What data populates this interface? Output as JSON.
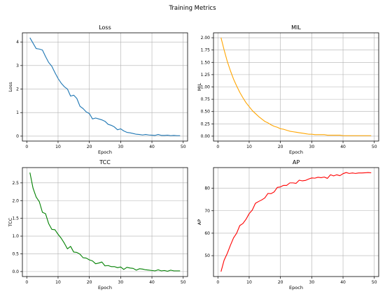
{
  "figure": {
    "title": "Training Metrics"
  },
  "chart_data": [
    {
      "type": "line",
      "title": "Loss",
      "xlabel": "Epoch",
      "ylabel": "Loss",
      "color": "#1f77b4",
      "grid": true,
      "xlim": [
        -1.4,
        51.4
      ],
      "ylim": [
        -0.21,
        4.39
      ],
      "xticks": [
        0,
        10,
        20,
        30,
        40,
        50
      ],
      "yticks": [
        0,
        1,
        2,
        3,
        4
      ],
      "ytick_labels": [
        "0",
        "1",
        "2",
        "3",
        "4"
      ],
      "x": [
        1,
        2,
        3,
        4,
        5,
        6,
        7,
        8,
        9,
        10,
        11,
        12,
        13,
        14,
        15,
        16,
        17,
        18,
        19,
        20,
        21,
        22,
        23,
        24,
        25,
        26,
        27,
        28,
        29,
        30,
        31,
        32,
        33,
        34,
        35,
        36,
        37,
        38,
        39,
        40,
        41,
        42,
        43,
        44,
        45,
        46,
        47,
        48,
        49
      ],
      "values": [
        4.18,
        3.95,
        3.72,
        3.7,
        3.66,
        3.38,
        3.13,
        2.97,
        2.7,
        2.45,
        2.25,
        2.1,
        2.0,
        1.7,
        1.74,
        1.6,
        1.27,
        1.17,
        1.03,
        0.96,
        0.73,
        0.77,
        0.73,
        0.69,
        0.63,
        0.5,
        0.46,
        0.39,
        0.27,
        0.31,
        0.22,
        0.16,
        0.14,
        0.11,
        0.08,
        0.07,
        0.05,
        0.07,
        0.05,
        0.04,
        0.03,
        0.07,
        0.03,
        0.03,
        0.04,
        0.02,
        0.03,
        0.02,
        0.02
      ]
    },
    {
      "type": "line",
      "title": "MIL",
      "xlabel": "Epoch",
      "ylabel": "MIL",
      "color": "#ffa500",
      "grid": true,
      "xlim": [
        -1.4,
        51.4
      ],
      "ylim": [
        -0.1,
        2.1
      ],
      "xticks": [
        0,
        10,
        20,
        30,
        40,
        50
      ],
      "yticks": [
        0,
        0.25,
        0.5,
        0.75,
        1.0,
        1.25,
        1.5,
        1.75,
        2.0
      ],
      "ytick_labels": [
        "0.00",
        "0.25",
        "0.50",
        "0.75",
        "1.00",
        "1.25",
        "1.50",
        "1.75",
        "2.00"
      ],
      "x": [
        1,
        2,
        3,
        4,
        5,
        6,
        7,
        8,
        9,
        10,
        11,
        12,
        13,
        14,
        15,
        16,
        17,
        18,
        19,
        20,
        21,
        22,
        23,
        24,
        25,
        26,
        27,
        28,
        29,
        30,
        31,
        32,
        33,
        34,
        35,
        36,
        37,
        38,
        39,
        40,
        41,
        42,
        43,
        44,
        45,
        46,
        47,
        48,
        49
      ],
      "values": [
        2.0,
        1.75,
        1.52,
        1.33,
        1.16,
        1.02,
        0.89,
        0.78,
        0.68,
        0.6,
        0.52,
        0.46,
        0.4,
        0.35,
        0.3,
        0.27,
        0.23,
        0.2,
        0.18,
        0.15,
        0.14,
        0.12,
        0.1,
        0.09,
        0.08,
        0.07,
        0.06,
        0.05,
        0.04,
        0.04,
        0.03,
        0.03,
        0.03,
        0.03,
        0.02,
        0.02,
        0.02,
        0.02,
        0.02,
        0.01,
        0.01,
        0.01,
        0.01,
        0.01,
        0.01,
        0.01,
        0.01,
        0.01,
        0.01
      ]
    },
    {
      "type": "line",
      "title": "TCC",
      "xlabel": "Epoch",
      "ylabel": "TCC",
      "color": "#008000",
      "grid": true,
      "xlim": [
        -1.4,
        51.4
      ],
      "ylim": [
        -0.14,
        2.93
      ],
      "xticks": [
        0,
        10,
        20,
        30,
        40,
        50
      ],
      "yticks": [
        0,
        0.5,
        1.0,
        1.5,
        2.0,
        2.5
      ],
      "ytick_labels": [
        "0.0",
        "0.5",
        "1.0",
        "1.5",
        "2.0",
        "2.5"
      ],
      "x": [
        1,
        2,
        3,
        4,
        5,
        6,
        7,
        8,
        9,
        10,
        11,
        12,
        13,
        14,
        15,
        16,
        17,
        18,
        19,
        20,
        21,
        22,
        23,
        24,
        25,
        26,
        27,
        28,
        29,
        30,
        31,
        32,
        33,
        34,
        35,
        36,
        37,
        38,
        39,
        40,
        41,
        42,
        43,
        44,
        45,
        46,
        47,
        48,
        49
      ],
      "values": [
        2.79,
        2.35,
        2.1,
        1.97,
        1.67,
        1.63,
        1.35,
        1.19,
        1.18,
        1.05,
        0.94,
        0.8,
        0.64,
        0.71,
        0.55,
        0.54,
        0.49,
        0.39,
        0.38,
        0.33,
        0.3,
        0.22,
        0.24,
        0.27,
        0.16,
        0.17,
        0.14,
        0.14,
        0.11,
        0.13,
        0.06,
        0.12,
        0.1,
        0.09,
        0.04,
        0.08,
        0.07,
        0.05,
        0.04,
        0.03,
        0.02,
        0.05,
        0.02,
        0.03,
        0.01,
        0.04,
        0.02,
        0.02,
        0.02
      ]
    },
    {
      "type": "line",
      "title": "AP",
      "xlabel": "Epoch",
      "ylabel": "AP",
      "color": "#ff0000",
      "grid": true,
      "xlim": [
        -1.4,
        51.4
      ],
      "ylim": [
        40.7,
        89.2
      ],
      "xticks": [
        0,
        10,
        20,
        30,
        40,
        50
      ],
      "yticks": [
        50,
        60,
        70,
        80
      ],
      "ytick_labels": [
        "50",
        "60",
        "70",
        "80"
      ],
      "x": [
        1,
        2,
        3,
        4,
        5,
        6,
        7,
        8,
        9,
        10,
        11,
        12,
        13,
        14,
        15,
        16,
        17,
        18,
        19,
        20,
        21,
        22,
        23,
        24,
        25,
        26,
        27,
        28,
        29,
        30,
        31,
        32,
        33,
        34,
        35,
        36,
        37,
        38,
        39,
        40,
        41,
        42,
        43,
        44,
        45,
        46,
        47,
        48,
        49
      ],
      "values": [
        42.9,
        48.0,
        51.0,
        54.6,
        57.9,
        60.0,
        63.4,
        64.3,
        66.2,
        68.7,
        70.3,
        73.3,
        74.1,
        74.8,
        75.7,
        77.7,
        77.6,
        78.4,
        80.4,
        80.6,
        81.3,
        81.3,
        82.4,
        82.4,
        82.2,
        83.6,
        83.3,
        83.5,
        84.1,
        84.6,
        84.5,
        84.9,
        84.7,
        85.0,
        84.4,
        86.0,
        85.5,
        86.0,
        85.6,
        86.5,
        87.0,
        86.6,
        86.8,
        86.6,
        86.8,
        86.8,
        86.9,
        87.0,
        86.9
      ]
    }
  ]
}
